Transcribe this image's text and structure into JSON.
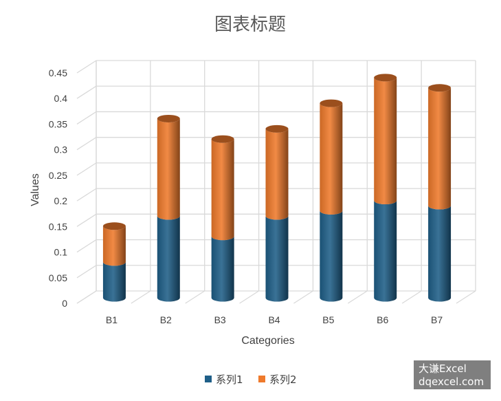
{
  "chart_data": {
    "type": "bar",
    "stacked": true,
    "style": "3d-cylinder",
    "title": "图表标题",
    "xlabel": "Categories",
    "ylabel": "Values",
    "categories": [
      "B1",
      "B2",
      "B3",
      "B4",
      "B5",
      "B6",
      "B7"
    ],
    "series": [
      {
        "name": "系列1",
        "color": "#1f5f88",
        "values": [
          0.07,
          0.16,
          0.12,
          0.16,
          0.17,
          0.19,
          0.18
        ]
      },
      {
        "name": "系列2",
        "color": "#ef7a2c",
        "values": [
          0.07,
          0.19,
          0.19,
          0.17,
          0.21,
          0.24,
          0.23
        ]
      }
    ],
    "ylim": [
      0,
      0.45
    ],
    "yticks": [
      "0",
      "0.05",
      "0.1",
      "0.15",
      "0.2",
      "0.25",
      "0.3",
      "0.35",
      "0.4",
      "0.45"
    ],
    "grid": true,
    "legend_position": "bottom"
  },
  "watermark": {
    "line1": "大谦Excel",
    "line2": "dqexcel.com"
  }
}
